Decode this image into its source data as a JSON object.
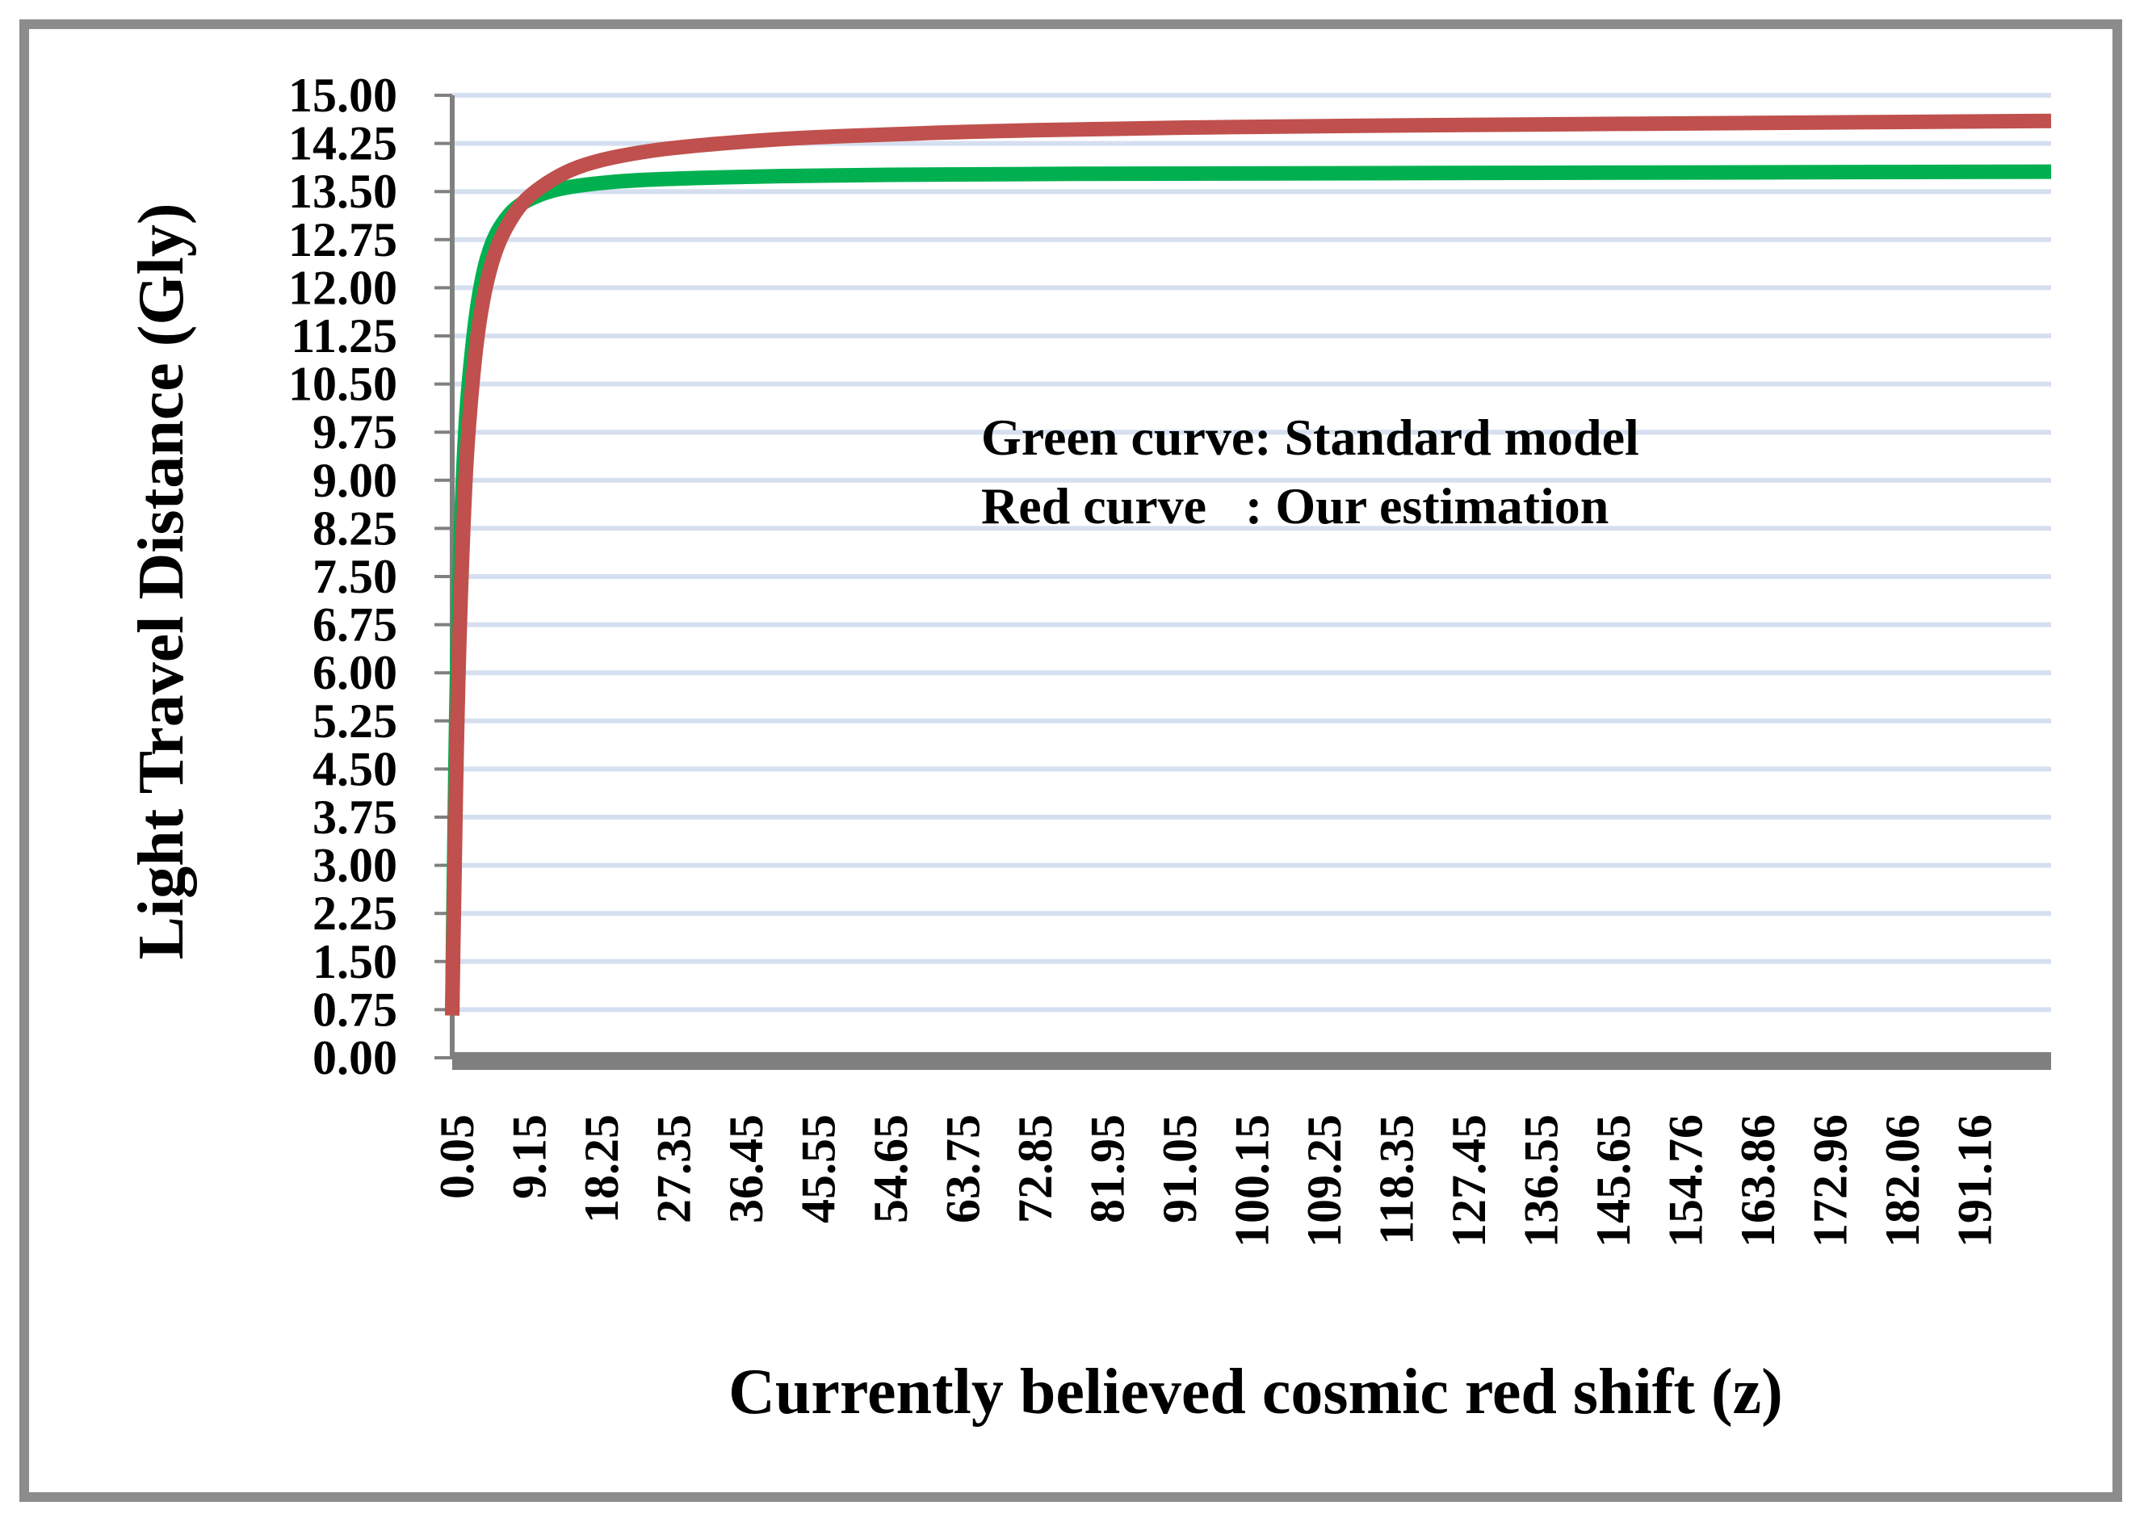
{
  "chart_data": {
    "type": "line",
    "title": "",
    "xlabel": "Currently believed cosmic red shift (z)",
    "ylabel": "Light Travel Distance (Gly)",
    "xlim": [
      0.05,
      200
    ],
    "ylim": [
      0,
      15
    ],
    "y_ticks": [
      "0.00",
      "0.75",
      "1.50",
      "2.25",
      "3.00",
      "3.75",
      "4.50",
      "5.25",
      "6.00",
      "6.75",
      "7.50",
      "8.25",
      "9.00",
      "9.75",
      "10.50",
      "11.25",
      "12.00",
      "12.75",
      "13.50",
      "14.25",
      "15.00"
    ],
    "x_ticks": [
      "0.05",
      "9.15",
      "18.25",
      "27.35",
      "36.45",
      "45.55",
      "54.65",
      "63.75",
      "72.85",
      "81.95",
      "91.05",
      "100.15",
      "109.25",
      "118.35",
      "127.45",
      "136.55",
      "145.65",
      "154.76",
      "163.86",
      "172.96",
      "182.06",
      "191.16"
    ],
    "grid": true,
    "annotations": [
      "Green curve: Standard model",
      "Red curve   : Our estimation"
    ],
    "series": [
      {
        "color": "#00b050",
        "x": [
          0.05,
          0.3,
          0.6,
          1.0,
          1.5,
          2.0,
          3.0,
          4.0,
          5.0,
          6.0,
          7.5,
          9.15,
          12,
          15,
          18.25,
          22,
          27.35,
          36.45,
          45.55,
          63.75,
          91.05,
          127.45,
          163.86,
          200
        ],
        "y": [
          0.66,
          3.4,
          5.8,
          7.8,
          9.4,
          10.4,
          11.6,
          12.3,
          12.7,
          12.95,
          13.2,
          13.35,
          13.5,
          13.58,
          13.63,
          13.67,
          13.7,
          13.73,
          13.75,
          13.77,
          13.78,
          13.79,
          13.8,
          13.81
        ]
      },
      {
        "color": "#c0504d",
        "x": [
          0.05,
          0.3,
          0.6,
          1.0,
          1.5,
          2.0,
          3.0,
          4.0,
          5.0,
          6.0,
          7.5,
          9.15,
          12,
          15,
          18.25,
          22,
          27.35,
          36.45,
          45.55,
          54.65,
          63.75,
          81.95,
          100.15,
          127.45,
          163.86,
          200
        ],
        "y": [
          0.66,
          2.6,
          4.8,
          6.8,
          8.5,
          9.7,
          11.1,
          11.9,
          12.4,
          12.75,
          13.1,
          13.38,
          13.65,
          13.85,
          13.98,
          14.08,
          14.18,
          14.28,
          14.35,
          14.39,
          14.43,
          14.48,
          14.51,
          14.54,
          14.57,
          14.6
        ]
      }
    ]
  }
}
